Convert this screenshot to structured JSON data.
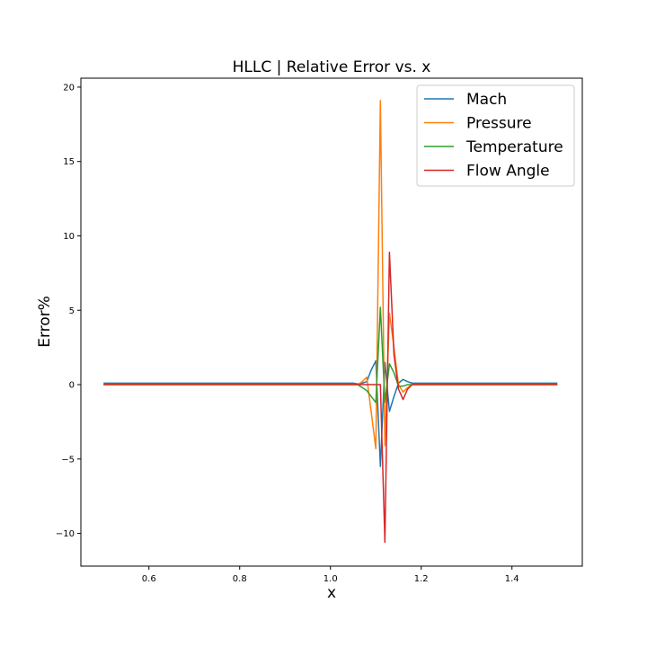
{
  "chart_data": {
    "type": "line",
    "title": "HLLC | Relative Error vs. x",
    "xlabel": "x",
    "ylabel": "Error%",
    "xlim": [
      0.45,
      1.555
    ],
    "ylim": [
      -12.2,
      20.6
    ],
    "xticks": [
      0.6,
      0.8,
      1.0,
      1.2,
      1.4
    ],
    "xtick_labels": [
      "0.6",
      "0.8",
      "1.0",
      "1.2",
      "1.4"
    ],
    "yticks": [
      -10,
      -5,
      0,
      5,
      10,
      15,
      20
    ],
    "ytick_labels": [
      "−10",
      "−5",
      "0",
      "5",
      "10",
      "15",
      "20"
    ],
    "grid": false,
    "legend_position": "top-right",
    "series": [
      {
        "name": "Mach",
        "color": "#1f77b4",
        "points": [
          [
            0.5,
            0.1
          ],
          [
            1.05,
            0.1
          ],
          [
            1.06,
            0.05
          ],
          [
            1.07,
            0.1
          ],
          [
            1.08,
            0.2
          ],
          [
            1.09,
            1.0
          ],
          [
            1.1,
            1.6
          ],
          [
            1.11,
            -5.5
          ],
          [
            1.12,
            1.5
          ],
          [
            1.13,
            -1.8
          ],
          [
            1.14,
            -0.8
          ],
          [
            1.15,
            0.1
          ],
          [
            1.16,
            0.35
          ],
          [
            1.17,
            0.2
          ],
          [
            1.18,
            0.1
          ],
          [
            1.5,
            0.1
          ]
        ]
      },
      {
        "name": "Pressure",
        "color": "#ff7f0e",
        "points": [
          [
            0.5,
            0.0
          ],
          [
            1.06,
            0.0
          ],
          [
            1.07,
            0.2
          ],
          [
            1.08,
            0.5
          ],
          [
            1.1,
            -4.3
          ],
          [
            1.11,
            19.1
          ],
          [
            1.12,
            -4.1
          ],
          [
            1.13,
            4.8
          ],
          [
            1.14,
            2.5
          ],
          [
            1.15,
            0.0
          ],
          [
            1.16,
            -0.5
          ],
          [
            1.17,
            -0.2
          ],
          [
            1.18,
            0.0
          ],
          [
            1.5,
            0.0
          ]
        ]
      },
      {
        "name": "Temperature",
        "color": "#2ca02c",
        "points": [
          [
            0.5,
            0.0
          ],
          [
            1.06,
            0.0
          ],
          [
            1.08,
            -0.4
          ],
          [
            1.1,
            -1.2
          ],
          [
            1.11,
            5.2
          ],
          [
            1.12,
            -1.2
          ],
          [
            1.13,
            1.4
          ],
          [
            1.14,
            0.8
          ],
          [
            1.15,
            -0.1
          ],
          [
            1.16,
            -0.1
          ],
          [
            1.17,
            0.0
          ],
          [
            1.5,
            0.0
          ]
        ]
      },
      {
        "name": "Flow Angle",
        "color": "#d62728",
        "points": [
          [
            0.5,
            0.0
          ],
          [
            1.1,
            0.0
          ],
          [
            1.11,
            0.0
          ],
          [
            1.12,
            -10.6
          ],
          [
            1.13,
            8.9
          ],
          [
            1.14,
            2.0
          ],
          [
            1.15,
            -0.3
          ],
          [
            1.16,
            -1.0
          ],
          [
            1.17,
            -0.3
          ],
          [
            1.18,
            0.0
          ],
          [
            1.5,
            0.0
          ]
        ]
      }
    ]
  }
}
